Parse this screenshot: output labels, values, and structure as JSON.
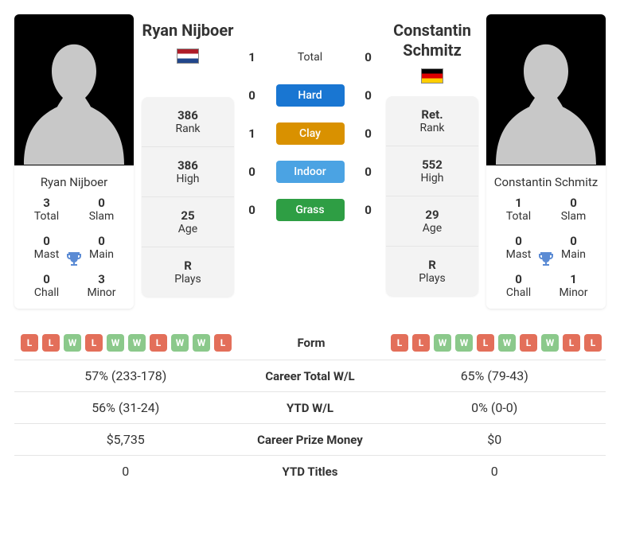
{
  "player1": {
    "name": "Ryan Nijboer",
    "flag": "ned",
    "titles": {
      "total": {
        "value": "3",
        "label": "Total"
      },
      "slam": {
        "value": "0",
        "label": "Slam"
      },
      "mast": {
        "value": "0",
        "label": "Mast"
      },
      "main": {
        "value": "0",
        "label": "Main"
      },
      "chall": {
        "value": "0",
        "label": "Chall"
      },
      "minor": {
        "value": "3",
        "label": "Minor"
      }
    },
    "stats": {
      "rank": {
        "value": "386",
        "label": "Rank"
      },
      "high": {
        "value": "386",
        "label": "High"
      },
      "age": {
        "value": "25",
        "label": "Age"
      },
      "plays": {
        "value": "R",
        "label": "Plays"
      }
    }
  },
  "player2": {
    "name": "Constantin Schmitz",
    "flag": "ger",
    "titles": {
      "total": {
        "value": "1",
        "label": "Total"
      },
      "slam": {
        "value": "0",
        "label": "Slam"
      },
      "mast": {
        "value": "0",
        "label": "Mast"
      },
      "main": {
        "value": "0",
        "label": "Main"
      },
      "chall": {
        "value": "0",
        "label": "Chall"
      },
      "minor": {
        "value": "1",
        "label": "Minor"
      }
    },
    "stats": {
      "rank": {
        "value": "Ret.",
        "label": "Rank"
      },
      "high": {
        "value": "552",
        "label": "High"
      },
      "age": {
        "value": "29",
        "label": "Age"
      },
      "plays": {
        "value": "R",
        "label": "Plays"
      }
    }
  },
  "h2h": {
    "total": {
      "p1": "1",
      "label": "Total",
      "p2": "0"
    },
    "hard": {
      "p1": "0",
      "label": "Hard",
      "p2": "0"
    },
    "clay": {
      "p1": "1",
      "label": "Clay",
      "p2": "0"
    },
    "indoor": {
      "p1": "0",
      "label": "Indoor",
      "p2": "0"
    },
    "grass": {
      "p1": "0",
      "label": "Grass",
      "p2": "0"
    }
  },
  "compare": {
    "form": {
      "label": "Form",
      "p1": [
        "L",
        "L",
        "W",
        "L",
        "W",
        "W",
        "L",
        "W",
        "W",
        "L"
      ],
      "p2": [
        "L",
        "L",
        "W",
        "W",
        "L",
        "W",
        "L",
        "W",
        "L",
        "L"
      ]
    },
    "career_wl": {
      "label": "Career Total W/L",
      "p1": "57% (233-178)",
      "p2": "65% (79-43)"
    },
    "ytd_wl": {
      "label": "YTD W/L",
      "p1": "56% (31-24)",
      "p2": "0% (0-0)"
    },
    "career_prize": {
      "label": "Career Prize Money",
      "p1": "$5,735",
      "p2": "$0"
    },
    "ytd_titles": {
      "label": "YTD Titles",
      "p1": "0",
      "p2": "0"
    }
  }
}
